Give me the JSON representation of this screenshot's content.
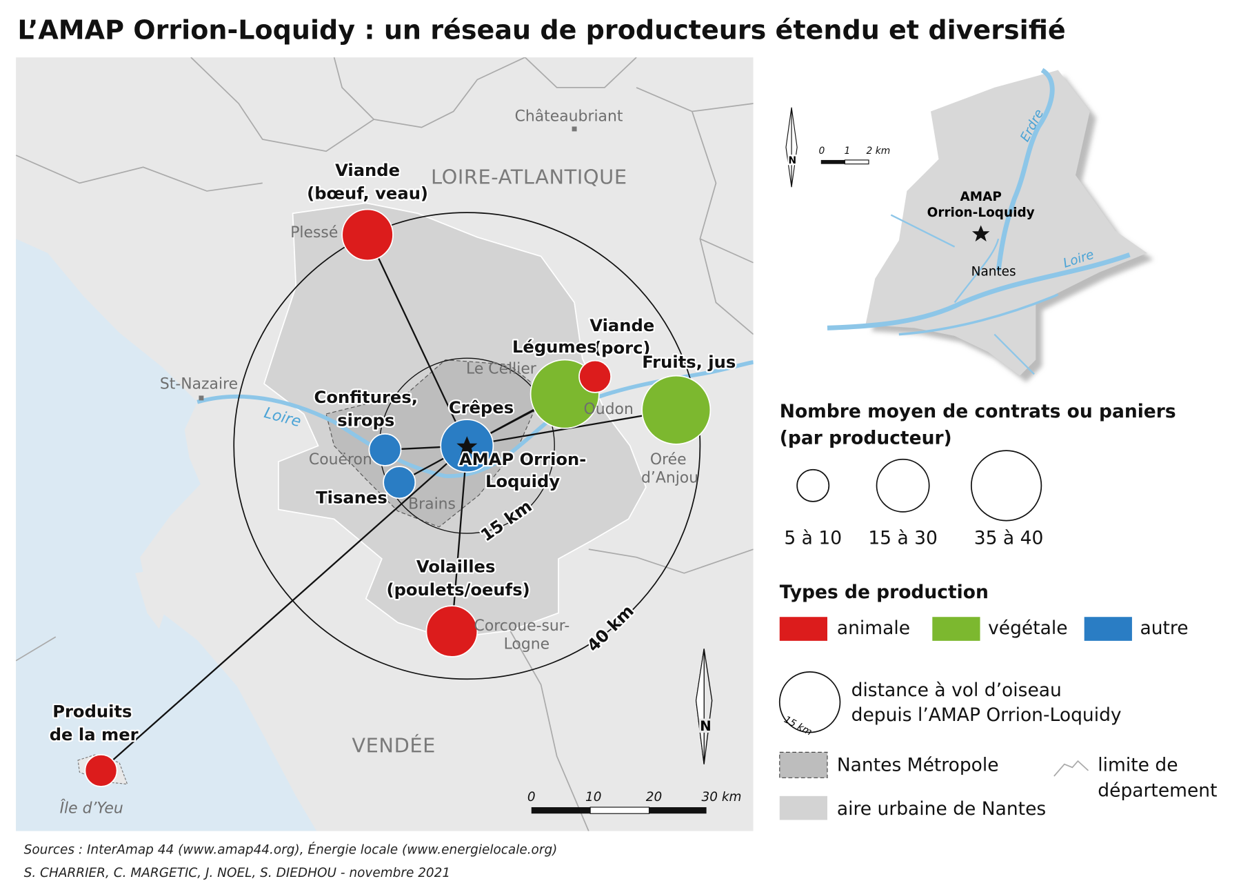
{
  "title": "L’AMAP Orrion-Loquidy : un réseau de producteurs étendu et diversifié",
  "map": {
    "places": [
      [
        "Châteaubriant"
      ],
      [
        "LOIRE-ATLANTIQUE"
      ],
      [
        "Plessé"
      ],
      [
        "St-Nazaire"
      ],
      [
        "Le Cellier"
      ],
      [
        "Oudon"
      ],
      [
        "Couëron"
      ],
      [
        "Brains"
      ],
      [
        "Orée",
        "d’Anjou"
      ],
      [
        "Corcoue-sur-",
        "Logne"
      ],
      [
        "VENDÉE"
      ],
      [
        "Île d’Yeu"
      ]
    ],
    "river": "Loire",
    "producers": [
      {
        "label": [
          "Viande",
          "(bœuf, veau)"
        ]
      },
      {
        "label": [
          "Viande",
          "(porc)"
        ]
      },
      {
        "label": [
          "Légumes"
        ]
      },
      {
        "label": [
          "Fruits, jus"
        ]
      },
      {
        "label": [
          "Confitures,",
          "sirops"
        ]
      },
      {
        "label": [
          "Crêpes"
        ]
      },
      {
        "label": [
          "Tisanes"
        ]
      },
      {
        "label": [
          "Volailles",
          "(poulets/oeufs)"
        ]
      },
      {
        "label": [
          "Produits",
          "de la mer"
        ]
      }
    ],
    "hub": [
      "AMAP Orrion-",
      "Loquidy"
    ],
    "rings": [
      "15 km",
      "40 km"
    ],
    "scale": [
      "0",
      "10",
      "20",
      "30 km"
    ],
    "north": "N"
  },
  "inset": {
    "hub": [
      "AMAP",
      "Orrion-Loquidy"
    ],
    "place": "Nantes",
    "rivers": [
      "Erdre",
      "Loire"
    ],
    "scale": [
      "0",
      "1",
      "2 km"
    ],
    "north": "N"
  },
  "legend": {
    "size_title": [
      "Nombre moyen de contrats ou paniers",
      "(par producteur)"
    ],
    "sizes": [
      "5 à 10",
      "15 à 30",
      "35 à 40"
    ],
    "type_title": "Types de production",
    "types": [
      "animale",
      "végétale",
      "autre"
    ],
    "distance": [
      "distance à vol d’oiseau",
      "depuis l’AMAP Orrion-Loquidy"
    ],
    "distance_ring": "15 km",
    "metropole": "Nantes Métropole",
    "urban": "aire urbaine de Nantes",
    "border": [
      "limite de",
      "département"
    ]
  },
  "sources": [
    "Sources : InterAmap 44 (www.amap44.org), Énergie locale (www.energielocale.org)",
    "S. CHARRIER, C. MARGETIC, J. NOEL, S. DIEDHOU - novembre 2021"
  ]
}
